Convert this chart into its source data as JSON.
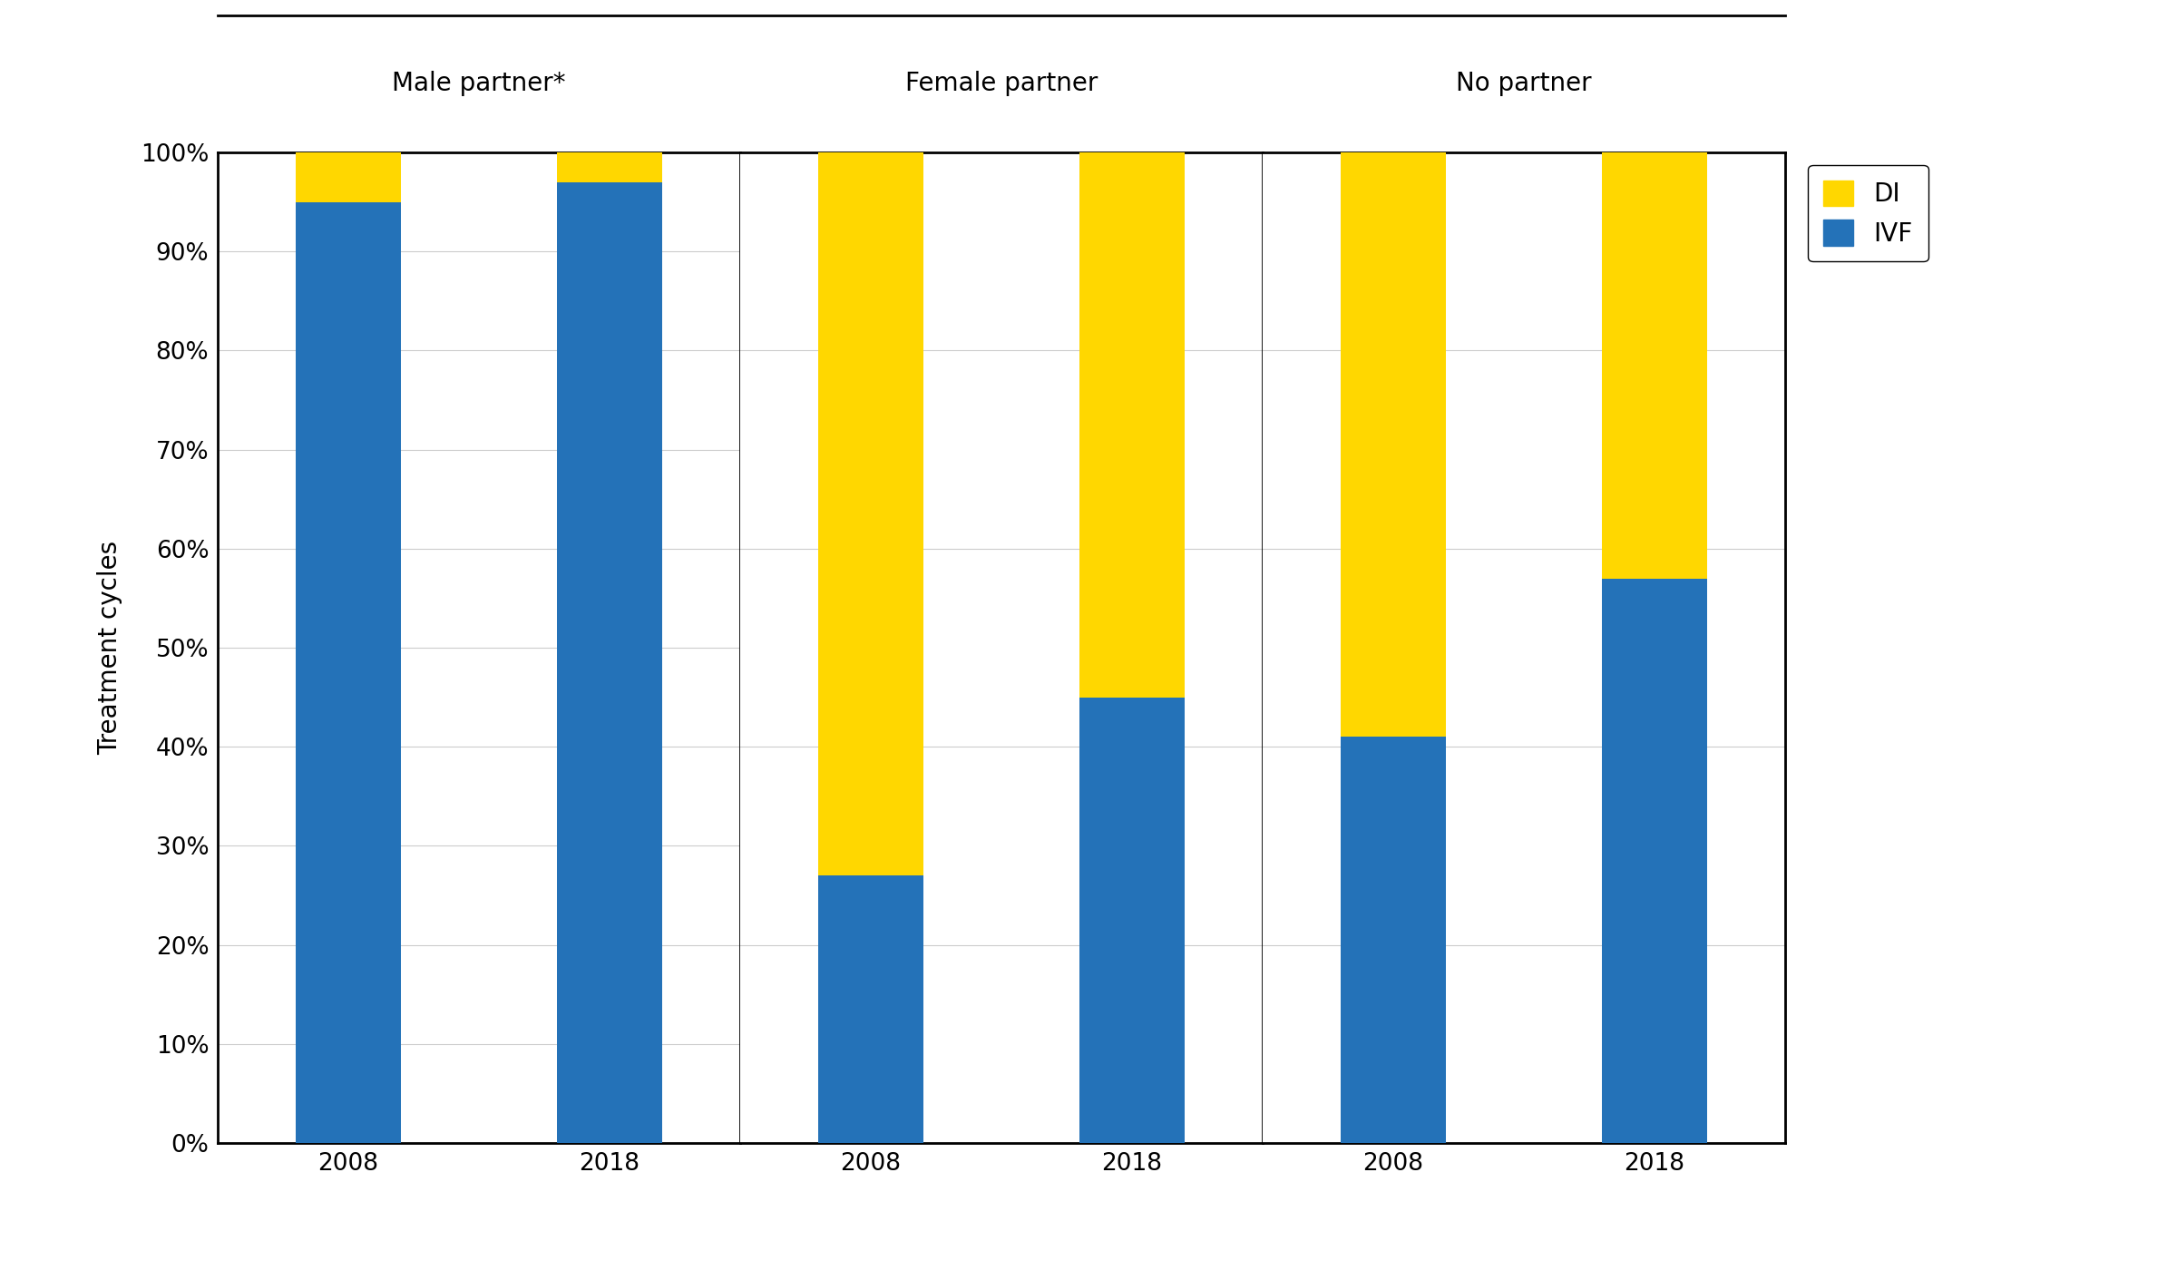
{
  "groups": [
    "Male partner*",
    "Female partner",
    "No partner"
  ],
  "years": [
    "2008",
    "2018"
  ],
  "ivf_values": [
    [
      95,
      97
    ],
    [
      27,
      45
    ],
    [
      41,
      57
    ]
  ],
  "di_values": [
    [
      5,
      3
    ],
    [
      73,
      55
    ],
    [
      59,
      43
    ]
  ],
  "ivf_color": "#2472B8",
  "di_color": "#FFD700",
  "ylabel": "Treatment cycles",
  "ytick_labels": [
    "0%",
    "10%",
    "20%",
    "30%",
    "40%",
    "50%",
    "60%",
    "70%",
    "80%",
    "90%",
    "100%"
  ],
  "ytick_values": [
    0,
    10,
    20,
    30,
    40,
    50,
    60,
    70,
    80,
    90,
    100
  ],
  "background_color": "#ffffff",
  "bar_width": 0.6,
  "group_title_fontsize": 20,
  "label_fontsize": 20,
  "tick_fontsize": 19,
  "legend_fontsize": 20
}
